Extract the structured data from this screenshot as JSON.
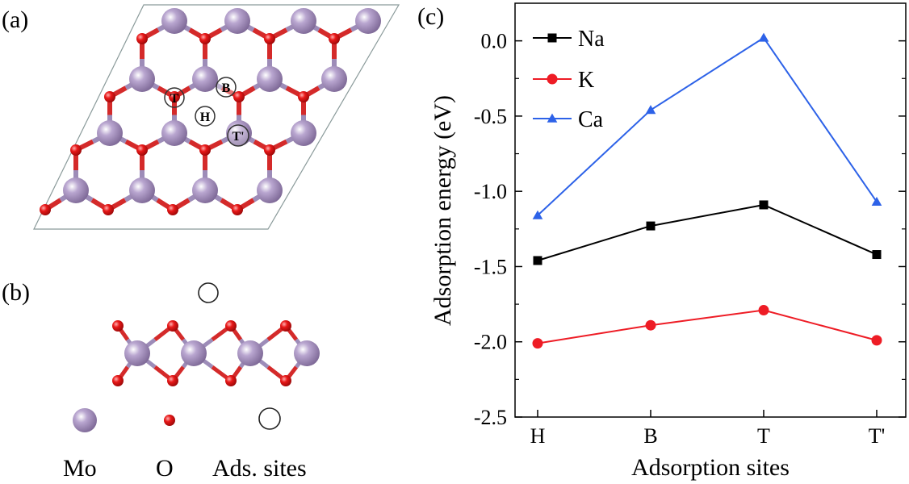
{
  "panels": {
    "a": "(a)",
    "b": "(b)",
    "c": "(c)"
  },
  "structure_legend": {
    "mo": "Mo",
    "o": "O",
    "sites": "Ads. sites"
  },
  "site_markers": {
    "t": "T",
    "b": "B",
    "h": "H",
    "tp": "T'"
  },
  "colors": {
    "mo": "#9b86b4",
    "o": "#e0141e",
    "bond_mo": "#9d8cb8",
    "bond_o": "#d42a2a"
  },
  "chart_data": {
    "type": "line",
    "title": "",
    "xlabel": "Adsorption sites",
    "ylabel": "Adsorption energy (eV)",
    "categories": [
      "H",
      "B",
      "T",
      "T'"
    ],
    "ylim": [
      -2.5,
      0.25
    ],
    "yticks": [
      0.0,
      -0.5,
      -1.0,
      -1.5,
      -2.0,
      -2.5
    ],
    "ytick_labels": [
      "0.0",
      "-0.5",
      "-1.0",
      "-1.5",
      "-2.0",
      "-2.5"
    ],
    "legend_position": "top-left",
    "series": [
      {
        "name": "Na",
        "values": [
          -1.46,
          -1.23,
          -1.09,
          -1.42
        ],
        "color": "#000000",
        "marker": "square"
      },
      {
        "name": "K",
        "values": [
          -2.01,
          -1.89,
          -1.79,
          -1.99
        ],
        "color": "#ee1c25",
        "marker": "circle"
      },
      {
        "name": "Ca",
        "values": [
          -1.16,
          -0.46,
          0.02,
          -1.07
        ],
        "color": "#2d62e8",
        "marker": "triangle"
      }
    ]
  }
}
